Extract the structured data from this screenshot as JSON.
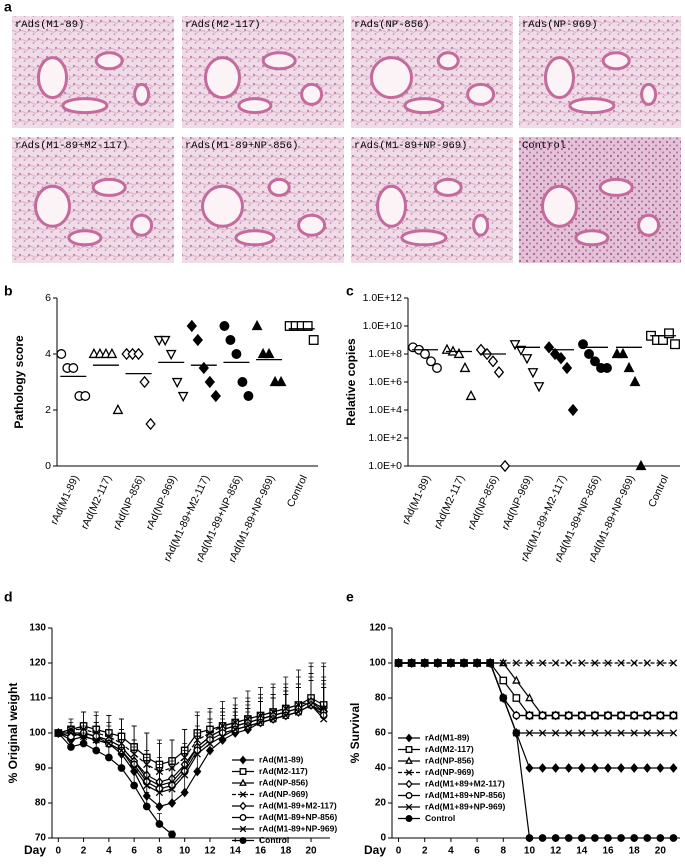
{
  "panel_labels": [
    "a",
    "b",
    "c",
    "d",
    "e"
  ],
  "images": [
    {
      "label": "rAds(M1-89)"
    },
    {
      "label": "rAds(M2-117)"
    },
    {
      "label": "rAds(NP-856)"
    },
    {
      "label": "rAds(NP-969)"
    },
    {
      "label": "rAds(M1-89+M2-117)"
    },
    {
      "label": "rAds(M1-89+NP-856)"
    },
    {
      "label": "rAds(M1-89+NP-969)"
    },
    {
      "label": "Control"
    }
  ],
  "chart_data": [
    {
      "type": "dotplot",
      "ylabel": "Pathology score",
      "color": "#000000",
      "categories": [
        "rAd(M1-89)",
        "rAd(M2-117)",
        "rAd(NP-856)",
        "rAd(NP-969)",
        "rAd(M1-89+M2-117)",
        "rAd(M1-89+NP-856)",
        "rAd(M1-89+NP-969)",
        "Control"
      ],
      "markers": [
        "circle",
        "triangle",
        "diamond",
        "triangle-down",
        "diamond",
        "circle",
        "triangle",
        "square"
      ],
      "filled": [
        false,
        false,
        false,
        false,
        true,
        true,
        true,
        false
      ],
      "values": [
        [
          4,
          3.5,
          3.5,
          2.5,
          2.5
        ],
        [
          4,
          4,
          4,
          4,
          2
        ],
        [
          4,
          4,
          4,
          3,
          1.5
        ],
        [
          4.5,
          4.5,
          4,
          3,
          2.5
        ],
        [
          5,
          4.5,
          3.5,
          3,
          2.5
        ],
        [
          5,
          4.5,
          4,
          3,
          2.5
        ],
        [
          5,
          4,
          4,
          3,
          3
        ],
        [
          5,
          5,
          5,
          5,
          4.5
        ]
      ],
      "means": [
        3.2,
        3.6,
        3.3,
        3.7,
        3.6,
        3.7,
        3.8,
        4.9
      ],
      "ylim": [
        0,
        6
      ],
      "yticks": [
        0,
        2,
        4,
        6
      ]
    },
    {
      "type": "dotplot",
      "ylabel": "Relative copies",
      "log_scale": true,
      "color": "#000000",
      "categories": [
        "rAd(M1-89)",
        "rAd(M2-117)",
        "rAd(NP-856)",
        "rAd(NP-969)",
        "rAd(M1-89+M2-117)",
        "rAd(M1-89+NP-856)",
        "rAd(M1-89+NP-969)",
        "Control"
      ],
      "markers": [
        "circle",
        "triangle",
        "diamond",
        "triangle-down",
        "diamond",
        "circle",
        "triangle",
        "square"
      ],
      "filled": [
        false,
        false,
        false,
        false,
        true,
        true,
        true,
        false
      ],
      "values": [
        [
          300000000,
          200000000,
          100000000,
          30000000,
          10000000
        ],
        [
          200000000,
          150000000,
          100000000,
          10000000,
          100000
        ],
        [
          200000000,
          100000000,
          30000000,
          5000000,
          1
        ],
        [
          500000000,
          200000000,
          50000000,
          5000000,
          500000
        ],
        [
          300000000,
          100000000,
          50000000,
          10000000,
          10000
        ],
        [
          500000000,
          100000000,
          30000000,
          10000000,
          10000000
        ],
        [
          100000000,
          100000000,
          10000000,
          1000000,
          1
        ],
        [
          2000000000,
          1000000000,
          1000000000,
          3000000000,
          500000000
        ]
      ],
      "means": [
        200000000,
        150000000,
        100000000,
        300000000,
        200000000,
        300000000,
        300000000,
        2000000000
      ],
      "ylim": [
        1,
        1000000000000
      ],
      "yticks": [
        {
          "value": 1,
          "label": "1.0E+0"
        },
        {
          "value": 100,
          "label": "1.0E+2"
        },
        {
          "value": 10000,
          "label": "1.0E+4"
        },
        {
          "value": 1000000,
          "label": "1.0E+6"
        },
        {
          "value": 100000000,
          "label": "1.0E+8"
        },
        {
          "value": 10000000000,
          "label": "1.0E+10"
        },
        {
          "value": 1000000000000,
          "label": "1.0E+12"
        }
      ]
    },
    {
      "type": "line",
      "ylabel": "% Original weight",
      "xlabel": "Day",
      "color": "#000000",
      "x": [
        0,
        1,
        2,
        3,
        4,
        5,
        6,
        7,
        8,
        9,
        10,
        11,
        12,
        13,
        14,
        15,
        16,
        17,
        18,
        19,
        20,
        21
      ],
      "xlim": [
        -0.5,
        21.5
      ],
      "xticks": [
        0,
        2,
        4,
        6,
        8,
        10,
        12,
        14,
        16,
        18,
        20
      ],
      "ylim": [
        70,
        130
      ],
      "yticks": [
        70,
        80,
        90,
        100,
        110,
        120,
        130
      ],
      "series": [
        {
          "name": "rAd(M1-89)",
          "marker": "diamond",
          "filled": true,
          "dashed": false,
          "values": [
            100,
            98,
            99,
            98,
            97,
            94,
            89,
            82,
            79,
            80,
            83,
            89,
            95,
            98,
            100,
            101,
            103,
            104,
            105,
            106,
            108,
            106
          ],
          "errors": [
            0,
            2,
            3,
            3,
            4,
            5,
            6,
            6,
            5,
            5,
            6,
            6,
            5,
            5,
            5,
            5,
            6,
            6,
            6,
            7,
            7,
            8
          ]
        },
        {
          "name": "rAd(M2-117)",
          "marker": "square",
          "filled": false,
          "dashed": false,
          "values": [
            100,
            101,
            102,
            101,
            100,
            99,
            96,
            93,
            91,
            92,
            95,
            100,
            101,
            102,
            103,
            104,
            105,
            106,
            107,
            108,
            110,
            108
          ],
          "errors": [
            0,
            2,
            4,
            4,
            5,
            5,
            6,
            7,
            6,
            6,
            6,
            5,
            5,
            5,
            5,
            6,
            6,
            7,
            7,
            8,
            9,
            12
          ]
        },
        {
          "name": "rAd(NP-856)",
          "marker": "triangle",
          "filled": false,
          "dashed": false,
          "values": [
            100,
            99,
            100,
            99,
            98,
            96,
            92,
            87,
            85,
            86,
            90,
            96,
            99,
            101,
            102,
            103,
            104,
            105,
            106,
            107,
            109,
            107
          ],
          "errors": [
            0,
            2,
            3,
            4,
            4,
            5,
            6,
            6,
            6,
            6,
            6,
            5,
            5,
            5,
            5,
            5,
            6,
            6,
            6,
            7,
            8,
            9
          ]
        },
        {
          "name": "rAd(NP-969)",
          "marker": "x",
          "filled": false,
          "dashed": true,
          "values": [
            100,
            101,
            101,
            100,
            99,
            97,
            94,
            91,
            89,
            90,
            93,
            98,
            100,
            102,
            103,
            104,
            105,
            106,
            107,
            108,
            109,
            107
          ],
          "errors": [
            0,
            3,
            5,
            6,
            6,
            7,
            8,
            9,
            9,
            8,
            8,
            8,
            7,
            7,
            7,
            8,
            8,
            8,
            9,
            10,
            11,
            12
          ]
        },
        {
          "name": "rAd(M1-89+M2-117)",
          "marker": "diamond",
          "filled": false,
          "dashed": false,
          "values": [
            100,
            100,
            100,
            99,
            98,
            96,
            92,
            88,
            86,
            87,
            91,
            96,
            99,
            101,
            102,
            103,
            104,
            105,
            106,
            107,
            109,
            106
          ],
          "errors": [
            0,
            2,
            3,
            4,
            5,
            5,
            6,
            7,
            7,
            6,
            6,
            6,
            5,
            5,
            5,
            6,
            6,
            6,
            7,
            7,
            8,
            9
          ]
        },
        {
          "name": "rAd(M1-89+NP-856)",
          "marker": "circle",
          "filled": false,
          "dashed": false,
          "values": [
            100,
            99,
            100,
            99,
            97,
            95,
            91,
            86,
            84,
            85,
            89,
            95,
            98,
            100,
            101,
            102,
            103,
            104,
            105,
            106,
            108,
            105
          ],
          "errors": [
            0,
            2,
            3,
            3,
            4,
            5,
            6,
            6,
            6,
            6,
            6,
            5,
            5,
            5,
            5,
            5,
            6,
            6,
            6,
            7,
            7,
            8
          ]
        },
        {
          "name": "rAd(M1-89+NP-969)",
          "marker": "x",
          "filled": false,
          "dashed": false,
          "values": [
            100,
            100,
            99,
            98,
            97,
            95,
            90,
            85,
            83,
            84,
            88,
            94,
            97,
            99,
            101,
            102,
            103,
            104,
            105,
            106,
            108,
            104
          ],
          "errors": [
            0,
            2,
            3,
            4,
            4,
            5,
            6,
            7,
            6,
            6,
            6,
            6,
            5,
            5,
            5,
            5,
            6,
            6,
            7,
            7,
            8,
            9
          ]
        },
        {
          "name": "Control",
          "marker": "circle",
          "filled": true,
          "dashed": false,
          "values": [
            100,
            96,
            97,
            95,
            93,
            90,
            85,
            79,
            74,
            71,
            null,
            null,
            null,
            null,
            null,
            null,
            null,
            null,
            null,
            null,
            null,
            null
          ],
          "errors": [
            0,
            2,
            3,
            3,
            3,
            4,
            4,
            4,
            3,
            1,
            null,
            null,
            null,
            null,
            null,
            null,
            null,
            null,
            null,
            null,
            null,
            null
          ]
        }
      ]
    },
    {
      "type": "line",
      "ylabel": "% Survival",
      "xlabel": "Day",
      "color": "#000000",
      "x": [
        0,
        1,
        2,
        3,
        4,
        5,
        6,
        7,
        8,
        9,
        10,
        11,
        12,
        13,
        14,
        15,
        16,
        17,
        18,
        19,
        20,
        21
      ],
      "xlim": [
        -0.5,
        21.5
      ],
      "xticks": [
        0,
        2,
        4,
        6,
        8,
        10,
        12,
        14,
        16,
        18,
        20
      ],
      "ylim": [
        0,
        120
      ],
      "yticks": [
        0,
        20,
        40,
        60,
        80,
        100,
        120
      ],
      "series": [
        {
          "name": "rAd(M1-89)",
          "marker": "diamond",
          "filled": true,
          "dashed": false,
          "values": [
            100,
            100,
            100,
            100,
            100,
            100,
            100,
            100,
            80,
            60,
            40,
            40,
            40,
            40,
            40,
            40,
            40,
            40,
            40,
            40,
            40,
            40
          ]
        },
        {
          "name": "rAd(M2-117)",
          "marker": "square",
          "filled": false,
          "dashed": false,
          "values": [
            100,
            100,
            100,
            100,
            100,
            100,
            100,
            100,
            90,
            80,
            70,
            70,
            70,
            70,
            70,
            70,
            70,
            70,
            70,
            70,
            70,
            70
          ]
        },
        {
          "name": "rAd(NP-856)",
          "marker": "triangle",
          "filled": false,
          "dashed": false,
          "values": [
            100,
            100,
            100,
            100,
            100,
            100,
            100,
            100,
            100,
            90,
            80,
            70,
            70,
            70,
            70,
            70,
            70,
            70,
            70,
            70,
            70,
            70
          ]
        },
        {
          "name": "rAd(NP-969)",
          "marker": "x",
          "filled": false,
          "dashed": true,
          "values": [
            100,
            100,
            100,
            100,
            100,
            100,
            100,
            100,
            100,
            100,
            100,
            100,
            100,
            100,
            100,
            100,
            100,
            100,
            100,
            100,
            100,
            100
          ]
        },
        {
          "name": "rAd(M1+89+M2-117)",
          "marker": "diamond",
          "filled": false,
          "dashed": false,
          "values": [
            100,
            100,
            100,
            100,
            100,
            100,
            100,
            100,
            80,
            70,
            70,
            70,
            70,
            70,
            70,
            70,
            70,
            70,
            70,
            70,
            70,
            70
          ]
        },
        {
          "name": "rAd(M1+89+NP-856)",
          "marker": "circle",
          "filled": false,
          "dashed": false,
          "values": [
            100,
            100,
            100,
            100,
            100,
            100,
            100,
            100,
            80,
            70,
            70,
            70,
            70,
            70,
            70,
            70,
            70,
            70,
            70,
            70,
            70,
            70
          ]
        },
        {
          "name": "rAd(M1+89+NP-969)",
          "marker": "x",
          "filled": false,
          "dashed": false,
          "values": [
            100,
            100,
            100,
            100,
            100,
            100,
            100,
            100,
            80,
            60,
            60,
            60,
            60,
            60,
            60,
            60,
            60,
            60,
            60,
            60,
            60,
            60
          ]
        },
        {
          "name": "Control",
          "marker": "circle",
          "filled": true,
          "dashed": false,
          "values": [
            100,
            100,
            100,
            100,
            100,
            100,
            100,
            100,
            80,
            60,
            0,
            0,
            0,
            0,
            0,
            0,
            0,
            0,
            0,
            0,
            0,
            0
          ]
        }
      ]
    }
  ]
}
